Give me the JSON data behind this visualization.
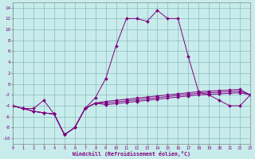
{
  "x": [
    0,
    1,
    2,
    3,
    4,
    5,
    6,
    7,
    8,
    9,
    10,
    11,
    12,
    13,
    14,
    15,
    16,
    17,
    18,
    19,
    20,
    21,
    22,
    23
  ],
  "main": [
    -4.0,
    -4.5,
    -4.5,
    -3.0,
    -5.5,
    -9.3,
    -8.0,
    -4.5,
    -2.5,
    1.0,
    7.0,
    12.0,
    12.0,
    11.5,
    13.5,
    12.0,
    12.0,
    5.0,
    -1.5,
    -2.0,
    -3.0,
    -4.0,
    -4.0,
    -2.0
  ],
  "wc1": [
    -4.0,
    -4.5,
    -5.0,
    -5.3,
    -5.5,
    -9.3,
    -8.0,
    -4.5,
    -3.5,
    -3.2,
    -3.0,
    -2.8,
    -2.6,
    -2.4,
    -2.2,
    -2.0,
    -1.8,
    -1.6,
    -1.4,
    -1.3,
    -1.2,
    -1.1,
    -1.0,
    -2.0
  ],
  "wc2": [
    -4.0,
    -4.5,
    -5.0,
    -5.3,
    -5.5,
    -9.3,
    -8.0,
    -4.5,
    -3.5,
    -3.5,
    -3.3,
    -3.1,
    -2.9,
    -2.7,
    -2.5,
    -2.3,
    -2.1,
    -1.9,
    -1.7,
    -1.6,
    -1.5,
    -1.4,
    -1.3,
    -2.0
  ],
  "wc3": [
    -4.0,
    -4.5,
    -5.0,
    -5.3,
    -5.5,
    -9.3,
    -8.0,
    -4.5,
    -3.5,
    -3.8,
    -3.6,
    -3.4,
    -3.2,
    -3.0,
    -2.8,
    -2.6,
    -2.4,
    -2.2,
    -2.0,
    -1.9,
    -1.8,
    -1.7,
    -1.6,
    -2.0
  ],
  "line_color": "#800080",
  "bg_color": "#c8ecec",
  "ylabel_ticks": [
    -10,
    -8,
    -6,
    -4,
    -2,
    0,
    2,
    4,
    6,
    8,
    10,
    12,
    14
  ],
  "xlabel": "Windchill (Refroidissement éolien,°C)",
  "ylim": [
    -11,
    15
  ],
  "xlim": [
    0,
    23
  ]
}
